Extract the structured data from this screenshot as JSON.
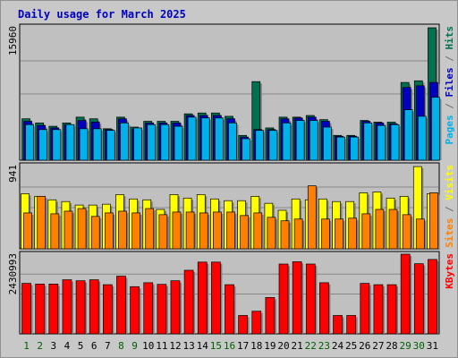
{
  "page": {
    "title": "Daily usage for March 2025"
  },
  "chart_data": {
    "type": "bar",
    "title": "Daily usage for March 2025",
    "categories": [
      "1",
      "2",
      "3",
      "4",
      "5",
      "6",
      "7",
      "8",
      "9",
      "10",
      "11",
      "12",
      "13",
      "14",
      "15",
      "16",
      "17",
      "18",
      "19",
      "20",
      "21",
      "22",
      "23",
      "24",
      "25",
      "26",
      "27",
      "28",
      "29",
      "30",
      "31"
    ],
    "weekend_days": [
      "1",
      "2",
      "8",
      "9",
      "15",
      "16",
      "22",
      "23",
      "29",
      "30"
    ],
    "colors": {
      "hits": "#007050",
      "files": "#0000c0",
      "pages": "#00b0e8",
      "visits": "#ffff00",
      "sites": "#ff8000",
      "kbytes": "#ff0000",
      "weekday_label": "#000000",
      "weekend_label": "#006000",
      "plot_bg": "#c0c0c0",
      "frame_bg": "#c8c8c8"
    },
    "panels": [
      {
        "id": "hits-files-pages",
        "ylabel_parts": [
          {
            "text": "Pages",
            "color": "#00b0e8"
          },
          {
            "text": " / ",
            "color": "#707070"
          },
          {
            "text": "Files",
            "color": "#0000c0"
          },
          {
            "text": " / ",
            "color": "#707070"
          },
          {
            "text": "Hits",
            "color": "#007050"
          }
        ],
        "max_label": "15960",
        "ylim": [
          0,
          15960
        ],
        "series": [
          {
            "name": "Hits",
            "color": "#007050",
            "values": [
              4990,
              4490,
              4090,
              4490,
              5190,
              4990,
              3790,
              5190,
              3990,
              4690,
              4690,
              4690,
              5590,
              5690,
              5690,
              5290,
              2990,
              9470,
              3890,
              5190,
              5190,
              5390,
              4890,
              2990,
              2990,
              4790,
              4590,
              4590,
              9370,
              9570,
              15960
            ]
          },
          {
            "name": "Files",
            "color": "#0000c0",
            "values": [
              4690,
              4190,
              3890,
              4290,
              4790,
              4590,
              3690,
              4990,
              3790,
              4490,
              4490,
              4490,
              5390,
              5390,
              5390,
              4990,
              2790,
              3690,
              3690,
              4990,
              5090,
              5190,
              4690,
              2890,
              2890,
              4690,
              4490,
              4390,
              8770,
              8970,
              9370
            ]
          },
          {
            "name": "Pages",
            "color": "#00b0e8",
            "values": [
              4290,
              3690,
              3690,
              4290,
              3790,
              3790,
              3590,
              4490,
              3890,
              4290,
              4290,
              4090,
              5190,
              5090,
              5090,
              4490,
              2590,
              3590,
              3590,
              4490,
              4790,
              4790,
              3990,
              2790,
              2790,
              4490,
              4190,
              4290,
              6080,
              5290,
              7580
            ]
          }
        ]
      },
      {
        "id": "visits-sites",
        "ylabel_parts": [
          {
            "text": "Sites",
            "color": "#ff8000"
          },
          {
            "text": " / ",
            "color": "#707070"
          },
          {
            "text": "Visits",
            "color": "#ffff00"
          }
        ],
        "max_label": "941",
        "ylim": [
          0,
          941
        ],
        "series": [
          {
            "name": "Visits",
            "color": "#ffff00",
            "values": [
              630,
              600,
              560,
              540,
              500,
              500,
              510,
              620,
              570,
              560,
              450,
              620,
              580,
              620,
              570,
              550,
              550,
              600,
              520,
              440,
              570,
              560,
              570,
              540,
              540,
              640,
              650,
              580,
              600,
              940,
              630
            ]
          },
          {
            "name": "Sites",
            "color": "#ff8000",
            "values": [
              410,
              600,
              400,
              430,
              460,
              370,
              410,
              430,
              410,
              460,
              390,
              420,
              420,
              410,
              420,
              420,
              380,
              410,
              360,
              320,
              340,
              720,
              340,
              340,
              350,
              400,
              450,
              450,
              390,
              340,
              640
            ]
          }
        ]
      },
      {
        "id": "kbytes",
        "ylabel_parts": [
          {
            "text": "KBytes",
            "color": "#ff0000"
          }
        ],
        "max_label": "2430993",
        "ylim": [
          0,
          2430993
        ],
        "series": [
          {
            "name": "KBytes",
            "color": "#ff0000",
            "values": [
              1540000,
              1520000,
              1520000,
              1650000,
              1620000,
              1650000,
              1500000,
              1760000,
              1440000,
              1560000,
              1510000,
              1620000,
              1940000,
              2190000,
              2190000,
              1500000,
              560000,
              690000,
              1110000,
              2130000,
              2200000,
              2130000,
              1560000,
              560000,
              560000,
              1540000,
              1500000,
              1500000,
              2430993,
              2140000,
              2270000
            ]
          }
        ]
      }
    ]
  }
}
